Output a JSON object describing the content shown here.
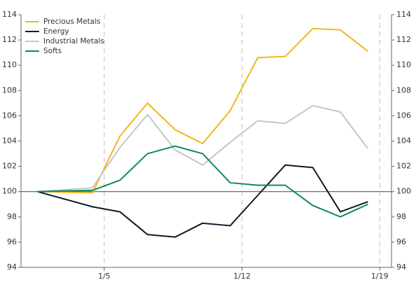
{
  "chart_data": {
    "type": "line",
    "x": [
      1.6,
      4.4,
      5.8,
      7.2,
      8.6,
      10.0,
      11.4,
      12.8,
      14.2,
      15.6,
      17.0,
      18.4
    ],
    "series": [
      {
        "name": "Precious Metals",
        "color": "#f0b71e",
        "values": [
          100,
          99.9,
          104.4,
          107,
          104.9,
          103.8,
          106.4,
          110.6,
          110.7,
          112.9,
          112.8,
          111.1
        ]
      },
      {
        "name": "Energy",
        "color": "#0d1b2a",
        "values": [
          100,
          98.8,
          98.4,
          96.6,
          96.4,
          97.5,
          97.3,
          99.7,
          102.1,
          101.9,
          98.4,
          99.2
        ]
      },
      {
        "name": "Industrial Metals",
        "color": "#c4c7c9",
        "values": [
          100,
          100.3,
          103.5,
          106.1,
          103.3,
          102.1,
          103.9,
          105.6,
          105.4,
          106.8,
          106.3,
          103.4
        ]
      },
      {
        "name": "Softs",
        "color": "#0d8a5c",
        "values": [
          100,
          100.1,
          100.9,
          103,
          103.6,
          103,
          100.7,
          100.5,
          100.5,
          98.9,
          98,
          99
        ]
      }
    ],
    "xlim": [
      0.77,
      19.6
    ],
    "xticks": [
      {
        "value": 5,
        "label": "1/5"
      },
      {
        "value": 12,
        "label": "1/12"
      },
      {
        "value": 19,
        "label": "1/19"
      }
    ],
    "ylim": [
      94,
      114
    ],
    "yticks": [
      94,
      96,
      98,
      100,
      102,
      104,
      106,
      108,
      110,
      112,
      114
    ],
    "y2lim": [
      94,
      114
    ],
    "y2ticks": [
      94,
      96,
      98,
      100,
      102,
      104,
      106,
      108,
      110,
      112,
      114
    ],
    "reference_line": 100,
    "grid": true,
    "legend": "top-left"
  }
}
